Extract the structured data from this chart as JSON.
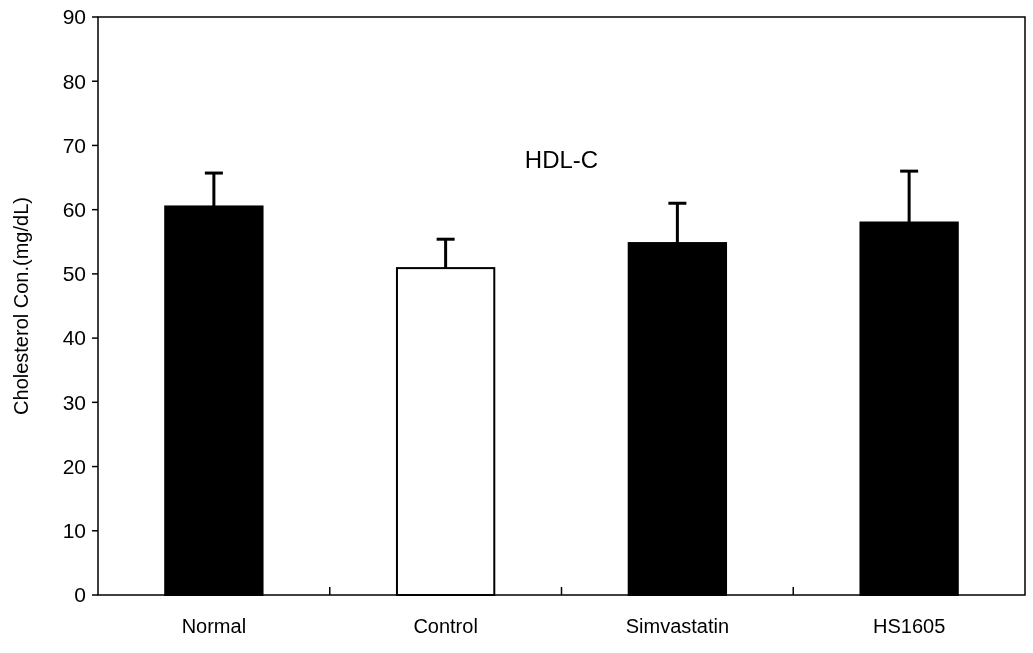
{
  "chart_data": {
    "type": "bar",
    "title": "HDL-C",
    "ylabel": "Cholesterol Con.(mg/dL)",
    "categories": [
      "Normal",
      "Control",
      "Simvastatin",
      "HS1605"
    ],
    "values": [
      60.5,
      50.9,
      54.8,
      58
    ],
    "errors": [
      [
        60.5,
        65.7
      ],
      [
        50.9,
        55.4
      ],
      [
        54.8,
        61
      ],
      [
        58,
        66
      ]
    ],
    "colors": [
      "#000000",
      "#ffffff",
      "#000000",
      "#000000"
    ],
    "ylim": [
      0,
      90
    ],
    "yticks": [
      0,
      10,
      20,
      30,
      40,
      50,
      60,
      70,
      80,
      90
    ],
    "grid": false
  }
}
